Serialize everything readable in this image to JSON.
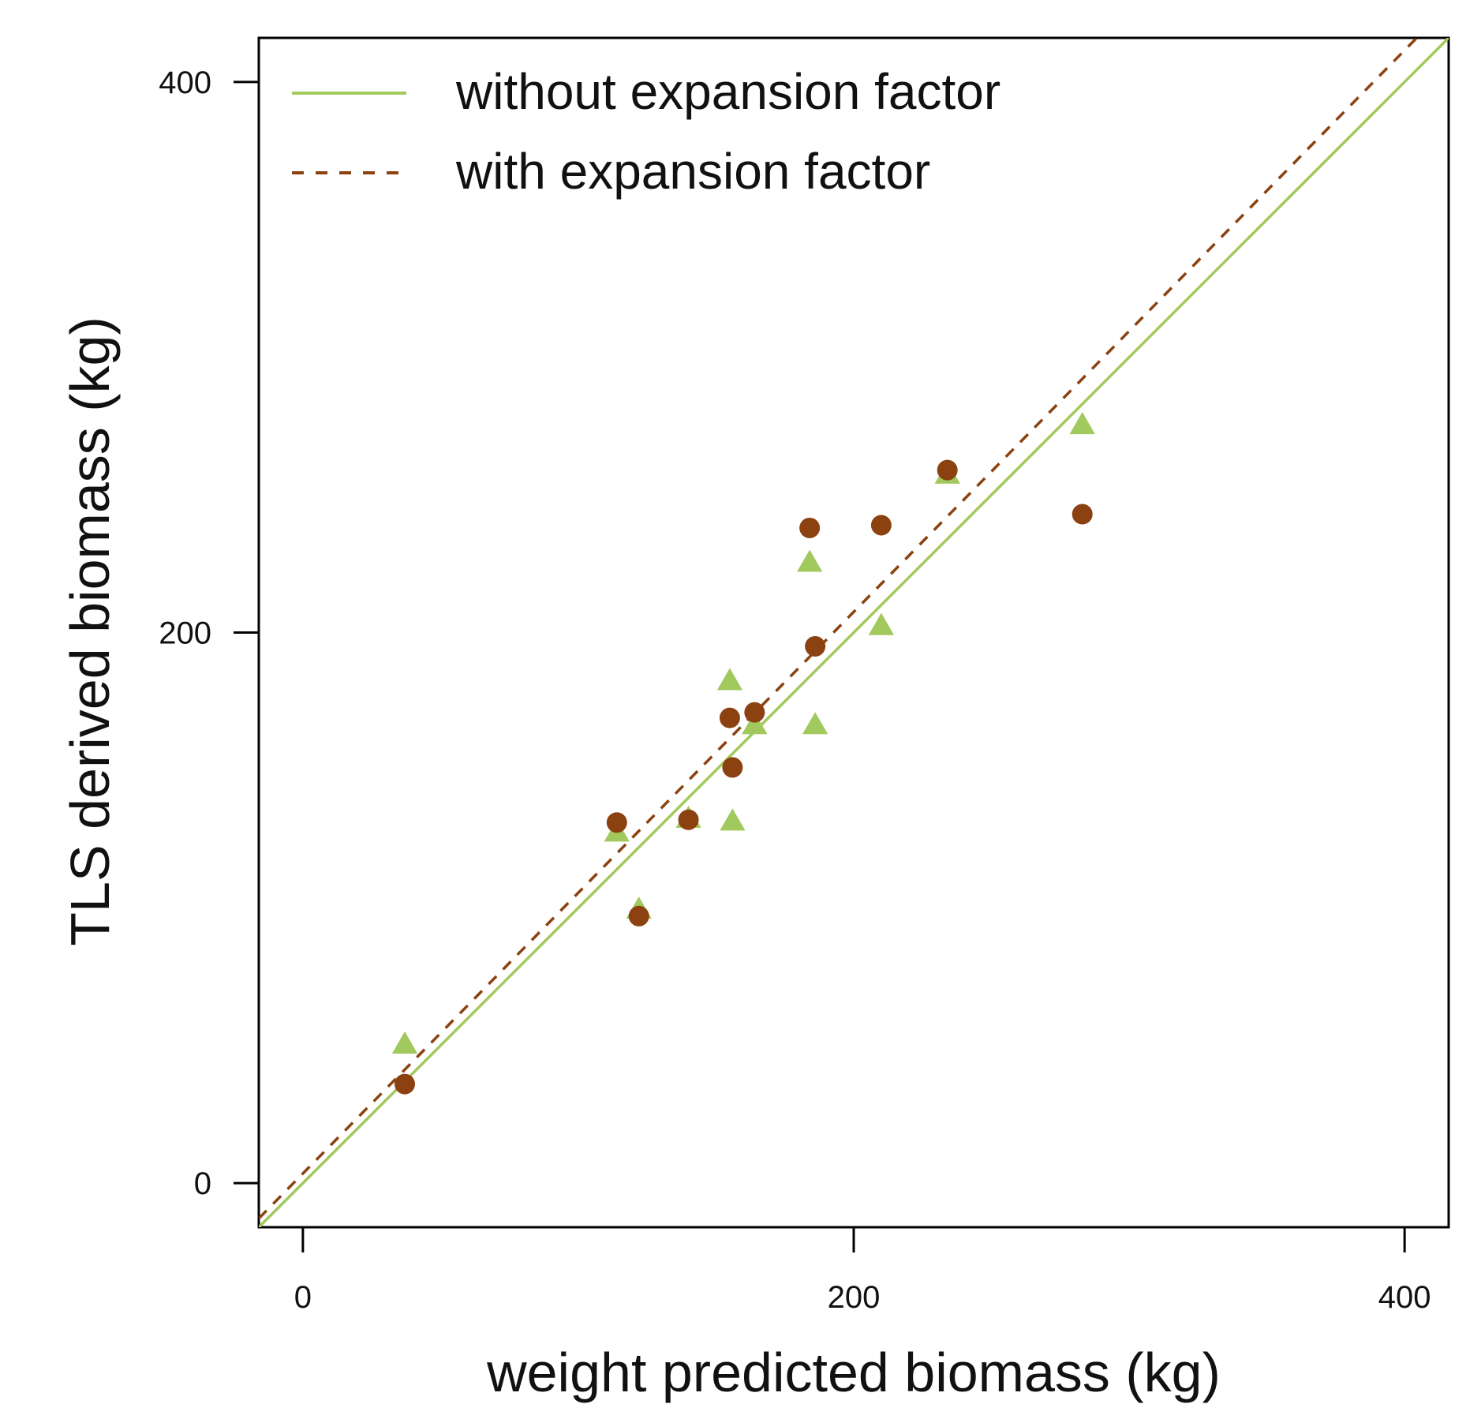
{
  "chart_data": {
    "type": "scatter",
    "title": "",
    "xlabel": "weight predicted biomass (kg)",
    "ylabel": "TLS derived biomass (kg)",
    "xlim": [
      -16,
      416
    ],
    "ylim": [
      -16,
      416
    ],
    "x_ticks": [
      0,
      200,
      400
    ],
    "y_ticks": [
      0,
      200,
      400
    ],
    "x_tick_labels": [
      "0",
      "200",
      "400"
    ],
    "y_tick_labels": [
      "0",
      "200",
      "400"
    ],
    "colors": {
      "without": "#a2c95d",
      "with": "#8b4110"
    },
    "series": [
      {
        "name": "without expansion factor",
        "marker": "triangle",
        "color": "#a2c95d",
        "points": [
          [
            37,
            50
          ],
          [
            114,
            127
          ],
          [
            122,
            99
          ],
          [
            140,
            132
          ],
          [
            155,
            182
          ],
          [
            156,
            131
          ],
          [
            164,
            166
          ],
          [
            184,
            225
          ],
          [
            186,
            166
          ],
          [
            210,
            202
          ],
          [
            234,
            257
          ],
          [
            283,
            275
          ]
        ]
      },
      {
        "name": "with expansion factor",
        "marker": "circle",
        "color": "#8b4110",
        "points": [
          [
            37,
            36
          ],
          [
            114,
            131
          ],
          [
            122,
            97
          ],
          [
            140,
            132
          ],
          [
            155,
            169
          ],
          [
            156,
            151
          ],
          [
            164,
            171
          ],
          [
            184,
            238
          ],
          [
            186,
            195
          ],
          [
            210,
            239
          ],
          [
            234,
            259
          ],
          [
            283,
            243
          ]
        ]
      }
    ],
    "fit_lines": [
      {
        "name": "without expansion factor",
        "style": "solid",
        "color": "#a2c95d",
        "intercept": 0,
        "slope": 1.0
      },
      {
        "name": "with expansion factor",
        "style": "dashed",
        "color": "#8b4110",
        "intercept": 3.5,
        "slope": 1.02
      }
    ],
    "legend": {
      "position": "top-left",
      "entries": [
        {
          "label": "without expansion factor",
          "style": "solid",
          "color": "#a2c95d"
        },
        {
          "label": "with expansion factor",
          "style": "dashed",
          "color": "#8b4110"
        }
      ]
    }
  }
}
